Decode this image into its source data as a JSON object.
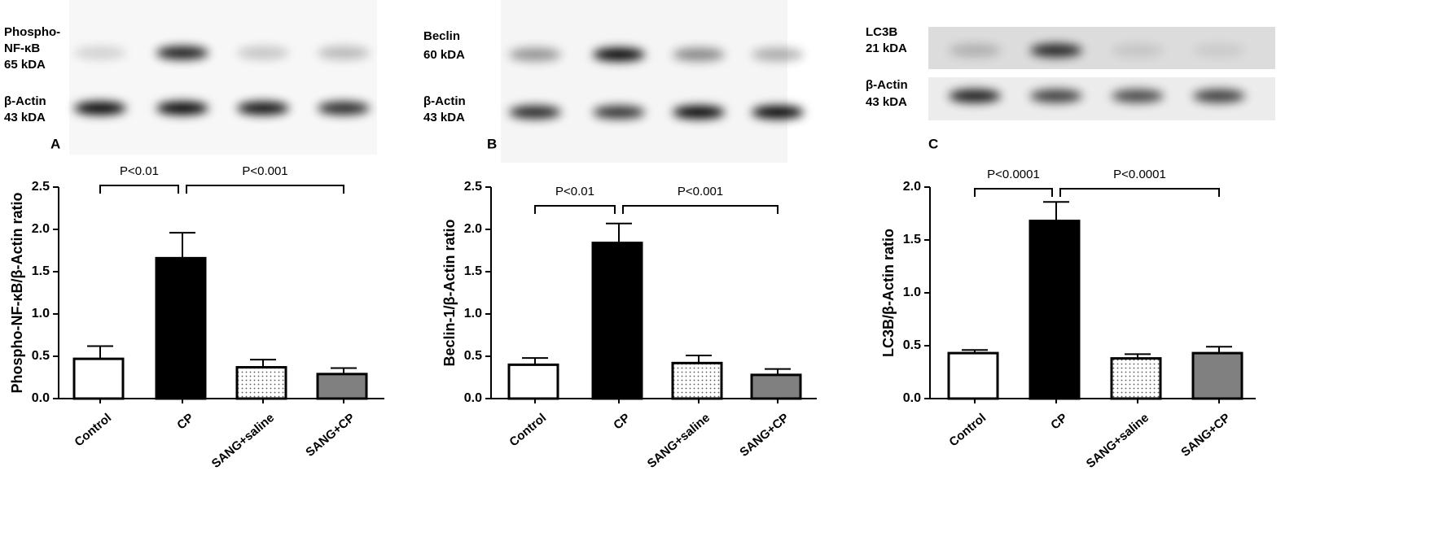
{
  "chart_data": [
    {
      "type": "bar",
      "panel": "A",
      "blots": [
        {
          "label": [
            "Phospho-",
            "NF-κB",
            "65 kDA"
          ]
        },
        {
          "label": [
            "β-Actin",
            "43 kDA"
          ]
        }
      ],
      "ylabel": "Phospho-NF-κB/β-Actin ratio",
      "categories": [
        "Control",
        "CP",
        "SANG+saline",
        "SANG+CP"
      ],
      "series": [
        {
          "values": [
            0.47,
            1.66,
            0.37,
            0.29
          ],
          "errors": [
            0.15,
            0.3,
            0.09,
            0.07
          ],
          "colors": [
            "#ffffff",
            "#000000",
            "#ffffff",
            "#808080"
          ],
          "hatch": [
            false,
            false,
            true,
            false
          ]
        }
      ],
      "ylim": [
        0,
        2.5
      ],
      "yticks": [
        {
          "value": 0,
          "label": "0.0"
        },
        0.5,
        {
          "value": 1,
          "label": "1.0"
        },
        1.5,
        {
          "value": 2,
          "label": "2.0"
        },
        2.5
      ],
      "annotations": [
        "P<0.01",
        "P<0.001"
      ]
    },
    {
      "type": "bar",
      "panel": "B",
      "blots": [
        {
          "label": [
            "Beclin",
            "60 kDA"
          ]
        },
        {
          "label": [
            "β-Actin",
            "43 kDA"
          ]
        }
      ],
      "ylabel": "Beclin-1/β-Actin ratio",
      "categories": [
        "Control",
        "CP",
        "SANG+saline",
        "SANG+CP"
      ],
      "series": [
        {
          "values": [
            0.4,
            1.84,
            0.42,
            0.28
          ],
          "errors": [
            0.08,
            0.23,
            0.09,
            0.07
          ],
          "colors": [
            "#ffffff",
            "#000000",
            "#ffffff",
            "#808080"
          ],
          "hatch": [
            false,
            false,
            true,
            false
          ]
        }
      ],
      "ylim": [
        0,
        2.5
      ],
      "yticks": [
        {
          "value": 0,
          "label": "0.0"
        },
        0.5,
        {
          "value": 1,
          "label": "1.0"
        },
        1.5,
        {
          "value": 2,
          "label": "2.0"
        },
        2.5
      ],
      "annotations": [
        "P<0.01",
        "P<0.001"
      ]
    },
    {
      "type": "bar",
      "panel": "C",
      "blots": [
        {
          "label": [
            "LC3B",
            "21 kDA"
          ]
        },
        {
          "label": [
            "β-Actin",
            "43 kDA"
          ]
        }
      ],
      "ylabel": "LC3B/β-Actin ratio",
      "categories": [
        "Control",
        "CP",
        "SANG+saline",
        "SANG+CP"
      ],
      "series": [
        {
          "values": [
            0.43,
            1.68,
            0.38,
            0.43
          ],
          "errors": [
            0.03,
            0.18,
            0.04,
            0.06
          ],
          "colors": [
            "#ffffff",
            "#000000",
            "#ffffff",
            "#808080"
          ],
          "hatch": [
            false,
            false,
            true,
            false
          ]
        }
      ],
      "ylim": [
        0,
        2
      ],
      "yticks": [
        {
          "value": 0,
          "label": "0.0"
        },
        0.5,
        {
          "value": 1,
          "label": "1.0"
        },
        1.5,
        {
          "value": 2,
          "label": "2.0"
        }
      ],
      "annotations": [
        "P<0.0001",
        "P<0.0001"
      ]
    }
  ]
}
